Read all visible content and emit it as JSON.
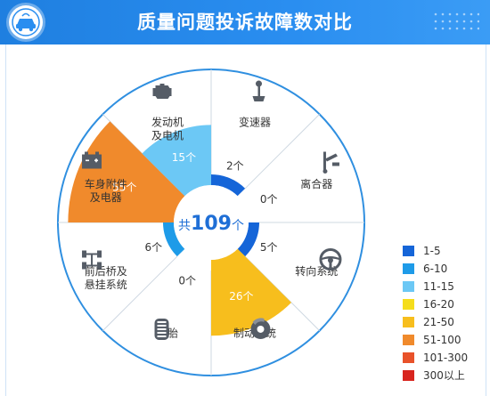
{
  "header": {
    "title": "质量问题投诉故障数对比",
    "logo_icon": "car-logo-icon",
    "accent": "#1f7fe0"
  },
  "center": {
    "prefix": "共",
    "total": "109",
    "suffix": "个"
  },
  "chart_data": {
    "type": "polar-area",
    "title": "质量问题投诉故障数对比",
    "unit": "个",
    "total": 109,
    "categories": [
      {
        "name_lines": [
          "变速器"
        ],
        "value": 2,
        "icon": "gear-shifter-icon"
      },
      {
        "name_lines": [
          "离合器"
        ],
        "value": 0,
        "icon": "clutch-icon"
      },
      {
        "name_lines": [
          "转向系统"
        ],
        "value": 5,
        "icon": "steering-wheel-icon"
      },
      {
        "name_lines": [
          "制动系统"
        ],
        "value": 26,
        "icon": "brake-disc-icon"
      },
      {
        "name_lines": [
          "轮胎"
        ],
        "value": 0,
        "icon": "tire-icon"
      },
      {
        "name_lines": [
          "前后桥及",
          "悬挂系统"
        ],
        "value": 6,
        "icon": "axle-icon"
      },
      {
        "name_lines": [
          "车身附件",
          "及电器"
        ],
        "value": 55,
        "icon": "battery-icon"
      },
      {
        "name_lines": [
          "发动机",
          "及电机"
        ],
        "value": 15,
        "icon": "engine-icon"
      }
    ],
    "legend": [
      {
        "label": "1-5",
        "color": "#1565d8"
      },
      {
        "label": "6-10",
        "color": "#1e9be8"
      },
      {
        "label": "11-15",
        "color": "#6cc8f5"
      },
      {
        "label": "16-20",
        "color": "#f5dd1c"
      },
      {
        "label": "21-50",
        "color": "#f7be1d"
      },
      {
        "label": "51-100",
        "color": "#f08a2c"
      },
      {
        "label": "101-300",
        "color": "#e8522a"
      },
      {
        "label": "300以上",
        "color": "#d8251e"
      }
    ]
  }
}
